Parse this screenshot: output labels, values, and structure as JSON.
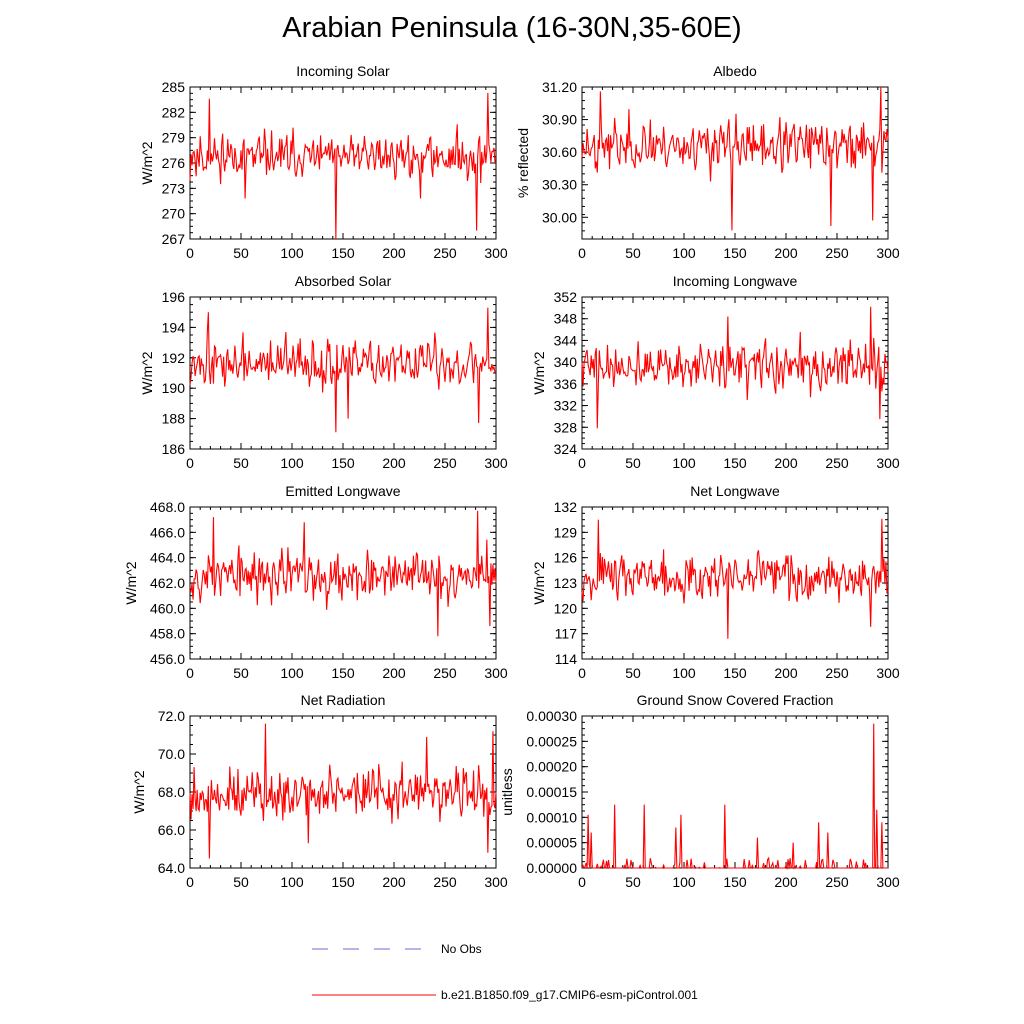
{
  "title": "Arabian Peninsula (16-30N,35-60E)",
  "legend": {
    "entries": [
      {
        "label": "No Obs",
        "color": "#6b6bd6",
        "style": "dashed"
      },
      {
        "label": "b.e21.B1850.f09_g17.CMIP6-esm-piControl.001",
        "color": "#ff0000",
        "style": "solid"
      }
    ]
  },
  "chart_data": [
    {
      "type": "line",
      "title": "Incoming Solar",
      "ylabel": "W/m^2",
      "xlim": [
        0,
        300
      ],
      "ylim": [
        267,
        285
      ],
      "xticks": [
        "0",
        "50",
        "100",
        "150",
        "200",
        "250",
        "300"
      ],
      "yticks": [
        "267",
        "270",
        "273",
        "276",
        "279",
        "282",
        "285"
      ],
      "series": [
        {
          "name": "b.e21.B1850.f09_g17.CMIP6-esm-piControl.001",
          "mean": 276.8,
          "amp": 2.2,
          "seed": 11,
          "events": [
            [
              19,
              283.6
            ],
            [
              54,
              271.8
            ],
            [
              143,
              267.0
            ],
            [
              226,
              271.8
            ],
            [
              281,
              268.0
            ],
            [
              292,
              284.3
            ]
          ]
        }
      ]
    },
    {
      "type": "line",
      "title": "Albedo",
      "ylabel": "% reflected",
      "xlim": [
        0,
        300
      ],
      "ylim": [
        29.8,
        31.2
      ],
      "xticks": [
        "0",
        "50",
        "100",
        "150",
        "200",
        "250",
        "300"
      ],
      "yticks": [
        "30.00",
        "30.30",
        "30.60",
        "30.90",
        "31.20"
      ],
      "series": [
        {
          "name": "b.e21.B1850.f09_g17.CMIP6-esm-piControl.001",
          "mean": 30.66,
          "amp": 0.19,
          "seed": 23,
          "events": [
            [
              18,
              31.16
            ],
            [
              147,
              29.88
            ],
            [
              244,
              29.92
            ],
            [
              293,
              31.2
            ],
            [
              285,
              29.97
            ]
          ]
        }
      ]
    },
    {
      "type": "line",
      "title": "Absorbed Solar",
      "ylabel": "W/m^2",
      "xlim": [
        0,
        300
      ],
      "ylim": [
        186,
        196
      ],
      "xticks": [
        "0",
        "50",
        "100",
        "150",
        "200",
        "250",
        "300"
      ],
      "yticks": [
        "186",
        "188",
        "190",
        "192",
        "194",
        "196"
      ],
      "series": [
        {
          "name": "b.e21.B1850.f09_g17.CMIP6-esm-piControl.001",
          "mean": 191.6,
          "amp": 1.3,
          "seed": 37,
          "events": [
            [
              18,
              195.0
            ],
            [
              143,
              187.1
            ],
            [
              155,
              188.0
            ],
            [
              283,
              187.7
            ],
            [
              292,
              195.3
            ]
          ]
        }
      ]
    },
    {
      "type": "line",
      "title": "Incoming Longwave",
      "ylabel": "W/m^2",
      "xlim": [
        0,
        300
      ],
      "ylim": [
        324,
        352
      ],
      "xticks": [
        "0",
        "50",
        "100",
        "150",
        "200",
        "250",
        "300"
      ],
      "yticks": [
        "324",
        "328",
        "332",
        "336",
        "340",
        "344",
        "348",
        "352"
      ],
      "series": [
        {
          "name": "b.e21.B1850.f09_g17.CMIP6-esm-piControl.001",
          "mean": 339.2,
          "amp": 3.6,
          "seed": 41,
          "events": [
            [
              15,
              327.8
            ],
            [
              143,
              348.4
            ],
            [
              283,
              350.2
            ],
            [
              292,
              329.5
            ]
          ]
        }
      ]
    },
    {
      "type": "line",
      "title": "Emitted Longwave",
      "ylabel": "W/m^2",
      "xlim": [
        0,
        300
      ],
      "ylim": [
        456,
        468
      ],
      "xticks": [
        "0",
        "50",
        "100",
        "150",
        "200",
        "250",
        "300"
      ],
      "yticks": [
        "456.0",
        "458.0",
        "460.0",
        "462.0",
        "464.0",
        "466.0",
        "468.0"
      ],
      "series": [
        {
          "name": "b.e21.B1850.f09_g17.CMIP6-esm-piControl.001",
          "mean": 462.6,
          "amp": 1.7,
          "seed": 53,
          "events": [
            [
              23,
              467.2
            ],
            [
              112,
              466.8
            ],
            [
              243,
              457.8
            ],
            [
              282,
              467.7
            ],
            [
              294,
              458.6
            ]
          ]
        }
      ]
    },
    {
      "type": "line",
      "title": "Net Longwave",
      "ylabel": "W/m^2",
      "xlim": [
        0,
        300
      ],
      "ylim": [
        114,
        132
      ],
      "xticks": [
        "0",
        "50",
        "100",
        "150",
        "200",
        "250",
        "300"
      ],
      "yticks": [
        "114",
        "117",
        "120",
        "123",
        "126",
        "129",
        "132"
      ],
      "series": [
        {
          "name": "b.e21.B1850.f09_g17.CMIP6-esm-piControl.001",
          "mean": 123.8,
          "amp": 2.4,
          "seed": 67,
          "events": [
            [
              16,
              130.5
            ],
            [
              143,
              116.4
            ],
            [
              283,
              117.8
            ],
            [
              294,
              130.6
            ]
          ]
        }
      ]
    },
    {
      "type": "line",
      "title": "Net Radiation",
      "ylabel": "W/m^2",
      "xlim": [
        0,
        300
      ],
      "ylim": [
        64,
        72
      ],
      "xticks": [
        "0",
        "50",
        "100",
        "150",
        "200",
        "250",
        "300"
      ],
      "yticks": [
        "64.0",
        "66.0",
        "68.0",
        "70.0",
        "72.0"
      ],
      "series": [
        {
          "name": "b.e21.B1850.f09_g17.CMIP6-esm-piControl.001",
          "mean": 67.9,
          "amp": 1.2,
          "seed": 79,
          "events": [
            [
              19,
              64.5
            ],
            [
              74,
              71.6
            ],
            [
              116,
              65.3
            ],
            [
              232,
              70.9
            ],
            [
              292,
              64.8
            ],
            [
              297,
              71.2
            ]
          ]
        }
      ]
    },
    {
      "type": "line",
      "title": "Ground Snow Covered Fraction",
      "ylabel": "unitless",
      "xlim": [
        0,
        300
      ],
      "ylim": [
        0,
        0.0003
      ],
      "xticks": [
        "0",
        "50",
        "100",
        "150",
        "200",
        "250",
        "300"
      ],
      "yticks": [
        "0.00000",
        "0.00005",
        "0.00010",
        "0.00015",
        "0.00020",
        "0.00025",
        "0.00030"
      ],
      "series": [
        {
          "name": "b.e21.B1850.f09_g17.CMIP6-esm-piControl.001",
          "mean": 0,
          "amp": 0,
          "seed": 97,
          "sparse": true,
          "events": [
            [
              6,
              0.000105
            ],
            [
              9,
              7e-05
            ],
            [
              32,
              0.000125
            ],
            [
              61,
              0.000125
            ],
            [
              92,
              8e-05
            ],
            [
              97,
              0.000105
            ],
            [
              140,
              0.000125
            ],
            [
              172,
              6e-05
            ],
            [
              207,
              5e-05
            ],
            [
              232,
              9e-05
            ],
            [
              241,
              7e-05
            ],
            [
              286,
              0.000285
            ],
            [
              289,
              0.000115
            ],
            [
              294,
              9e-05
            ]
          ]
        }
      ]
    }
  ]
}
